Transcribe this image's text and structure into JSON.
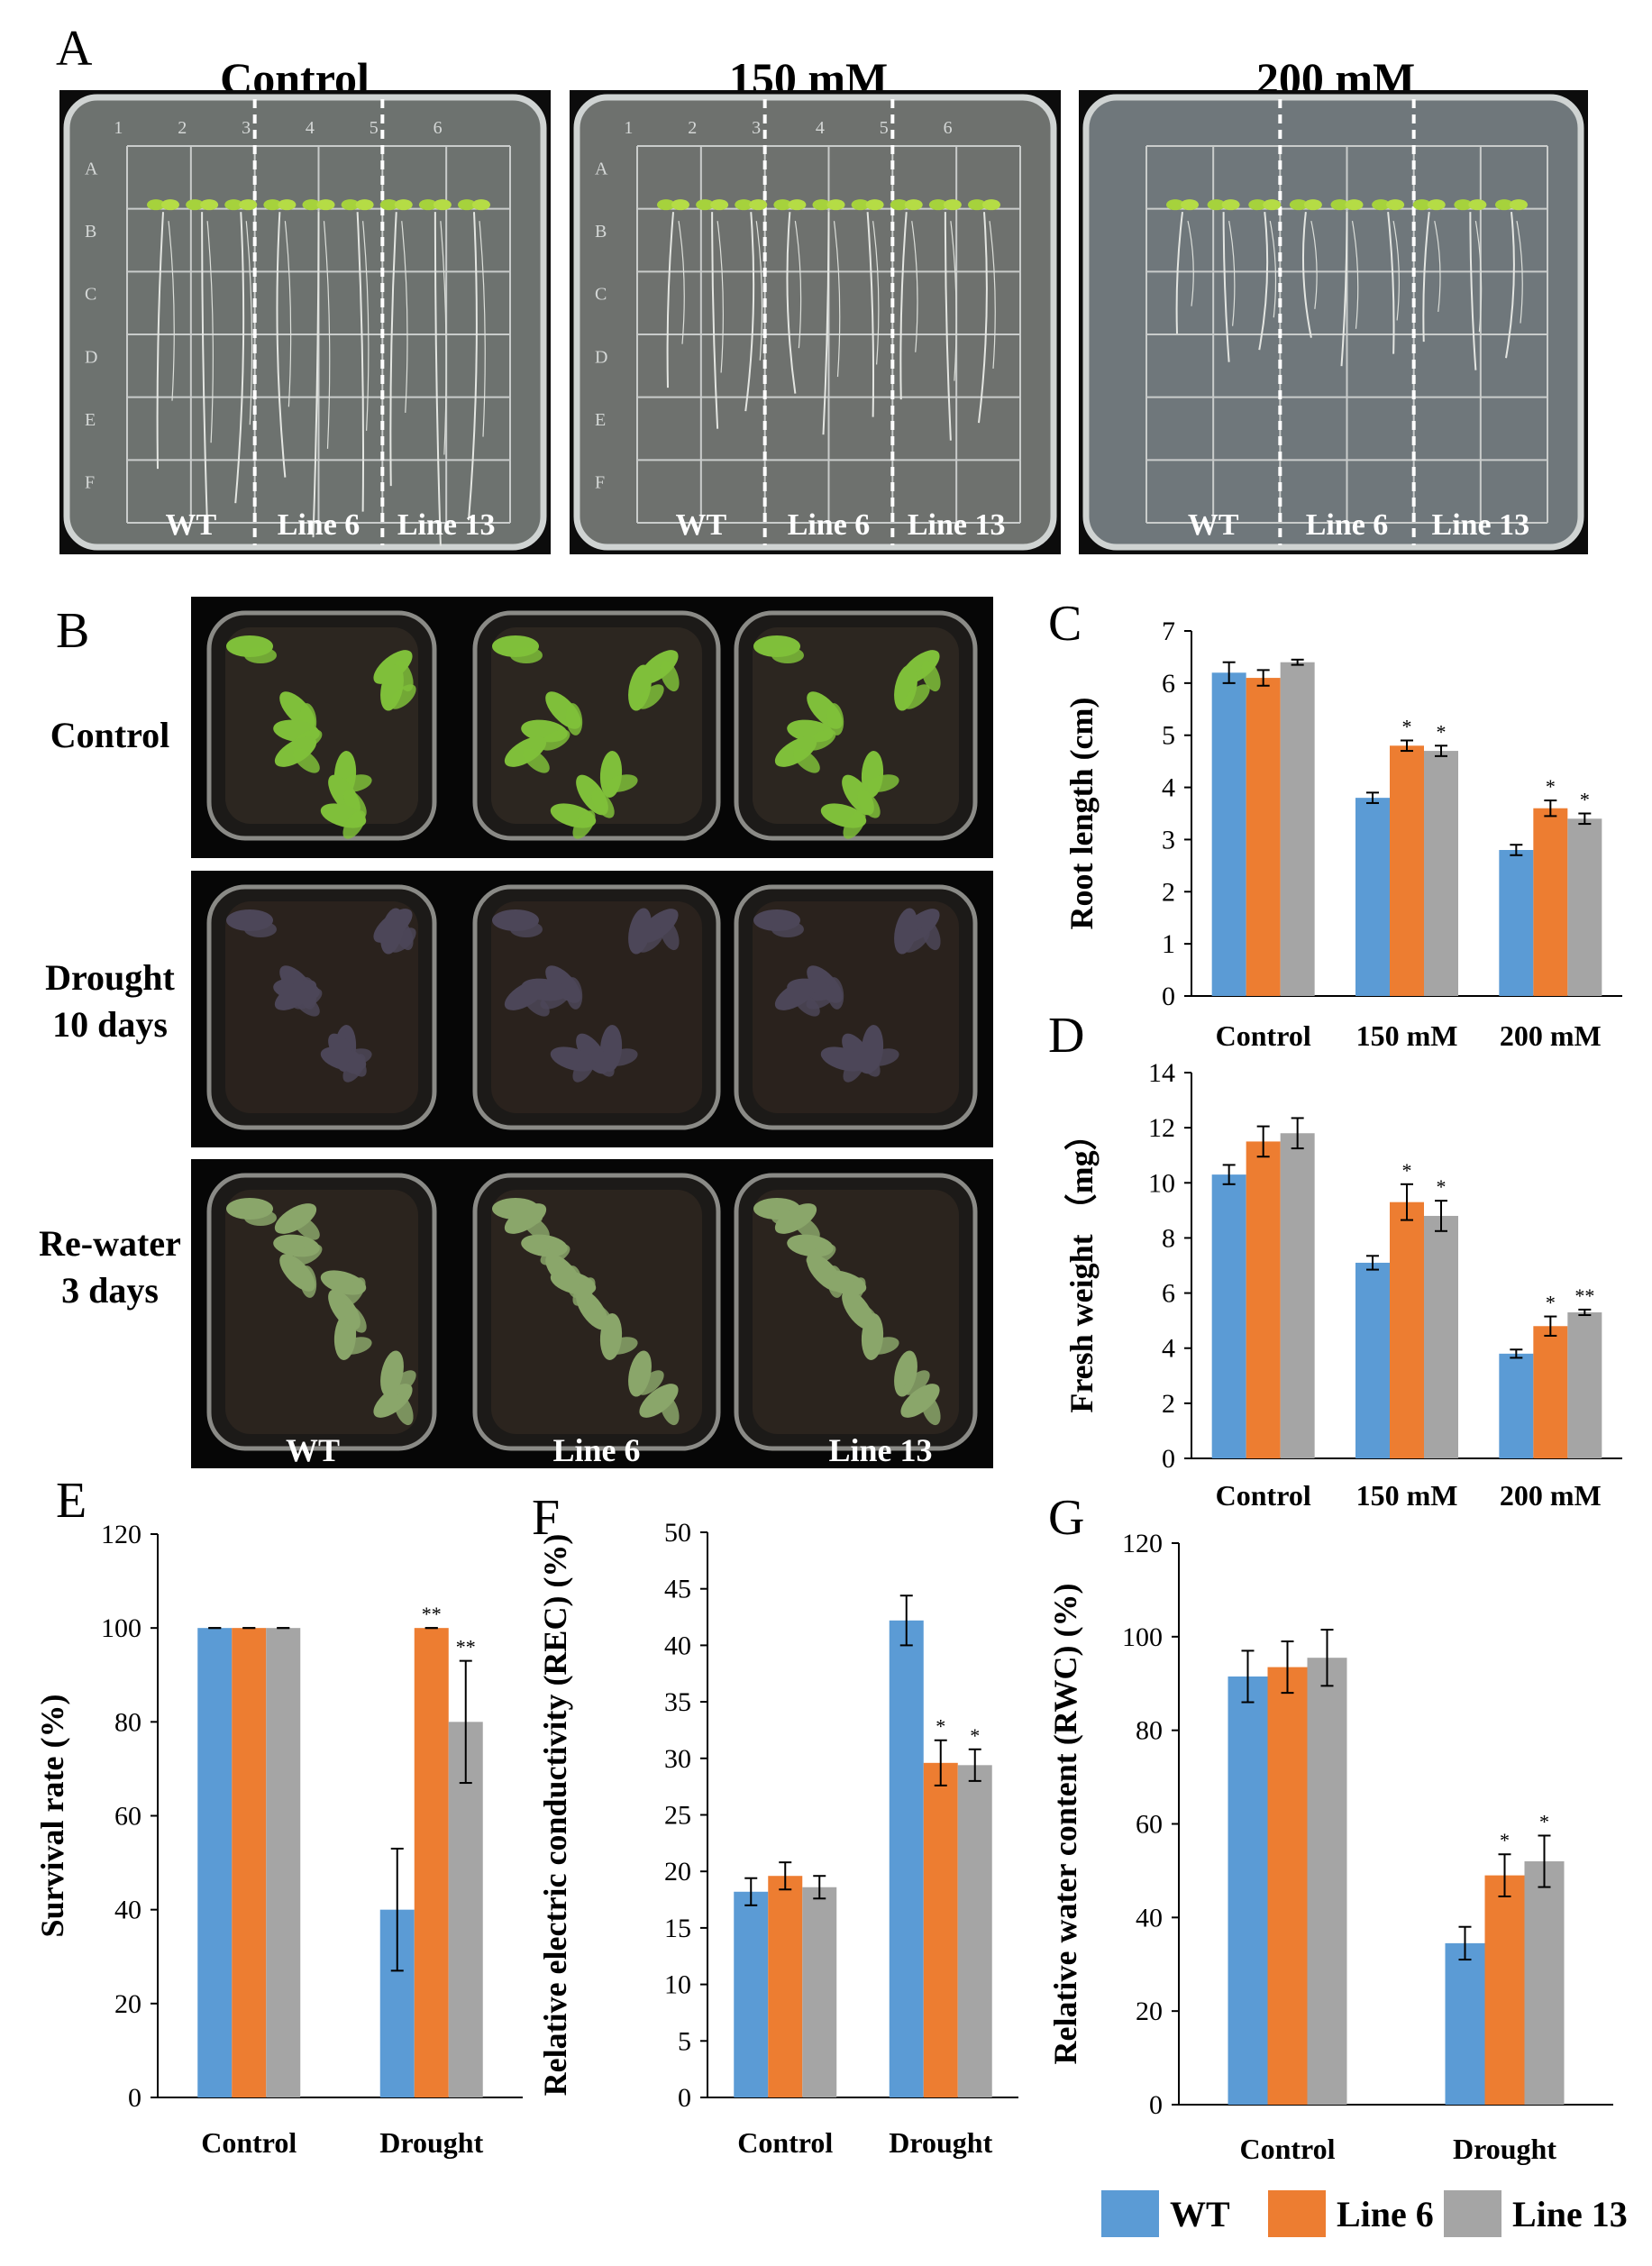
{
  "panel_letters": {
    "a": "A",
    "b": "B",
    "c": "C",
    "d": "D",
    "e": "E",
    "f": "F",
    "g": "G"
  },
  "panel_a": {
    "plates": [
      {
        "title": "Control",
        "bg": "#6d726f",
        "lanes": [
          "WT",
          "Line 6",
          "Line 13"
        ],
        "col_nums": [
          "1",
          "2",
          "3",
          "4",
          "5",
          "6"
        ],
        "row_letters": [
          "A",
          "B",
          "C",
          "D",
          "E",
          "F"
        ]
      },
      {
        "title": "150 mM",
        "bg": "#6e716e",
        "lanes": [
          "WT",
          "Line 6",
          "Line 13"
        ],
        "col_nums": [
          "1",
          "2",
          "3",
          "4",
          "5",
          "6"
        ],
        "row_letters": [
          "A",
          "B",
          "C",
          "D",
          "E",
          "F"
        ]
      },
      {
        "title": "200 mM",
        "bg": "#6f777b",
        "lanes": [
          "WT",
          "Line 6",
          "Line 13"
        ],
        "col_nums": [
          "",
          "",
          "",
          "",
          "",
          ""
        ],
        "row_letters": [
          "",
          "",
          "",
          "",
          "",
          ""
        ]
      }
    ]
  },
  "panel_b": {
    "rows": [
      {
        "label_lines": [
          "Control"
        ],
        "leaf": "#7fbf3a",
        "soil": "#2c2620"
      },
      {
        "label_lines": [
          "Drought",
          "10 days"
        ],
        "leaf": "#4c4658",
        "soil": "#2a221d"
      },
      {
        "label_lines": [
          "Re-water",
          "3 days"
        ],
        "leaf": "#8aa66a",
        "soil": "#2b241e"
      }
    ],
    "bottom_labels": [
      "WT",
      "Line 6",
      "Line 13"
    ]
  },
  "colors": {
    "wt": "#5b9bd5",
    "line6": "#ed7d31",
    "line13": "#a5a5a5"
  },
  "legend": {
    "items": [
      {
        "key": "wt",
        "label": "WT"
      },
      {
        "key": "line6",
        "label": "Line 6"
      },
      {
        "key": "line13",
        "label": "Line 13"
      }
    ]
  },
  "chart_data": [
    {
      "id": "C",
      "type": "bar",
      "ylabel": "Root  length (cm)",
      "xlabel": "",
      "categories": [
        "Control",
        "150 mM",
        "200 mM"
      ],
      "ylim": [
        0,
        7
      ],
      "yticks": [
        0,
        1,
        2,
        3,
        4,
        5,
        6,
        7
      ],
      "series": [
        {
          "name": "WT",
          "color_key": "wt",
          "values": [
            6.2,
            3.8,
            2.8
          ],
          "errors": [
            0.2,
            0.1,
            0.1
          ],
          "stars": [
            "",
            "",
            ""
          ]
        },
        {
          "name": "Line 6",
          "color_key": "line6",
          "values": [
            6.1,
            4.8,
            3.6
          ],
          "errors": [
            0.15,
            0.1,
            0.15
          ],
          "stars": [
            "",
            "*",
            "*"
          ]
        },
        {
          "name": "Line 13",
          "color_key": "line13",
          "values": [
            6.4,
            4.7,
            3.4
          ],
          "errors": [
            0.05,
            0.1,
            0.1
          ],
          "stars": [
            "",
            "*",
            "*"
          ]
        }
      ]
    },
    {
      "id": "D",
      "type": "bar",
      "ylabel": "Fresh  weight （mg）",
      "xlabel": "",
      "categories": [
        "Control",
        "150 mM",
        "200 mM"
      ],
      "ylim": [
        0,
        14
      ],
      "yticks": [
        0,
        2,
        4,
        6,
        8,
        10,
        12,
        14
      ],
      "series": [
        {
          "name": "WT",
          "color_key": "wt",
          "values": [
            10.3,
            7.1,
            3.8
          ],
          "errors": [
            0.35,
            0.25,
            0.15
          ],
          "stars": [
            "",
            "",
            ""
          ]
        },
        {
          "name": "Line 6",
          "color_key": "line6",
          "values": [
            11.5,
            9.3,
            4.8
          ],
          "errors": [
            0.55,
            0.65,
            0.35
          ],
          "stars": [
            "",
            "*",
            "*"
          ]
        },
        {
          "name": "Line 13",
          "color_key": "line13",
          "values": [
            11.8,
            8.8,
            5.3
          ],
          "errors": [
            0.55,
            0.55,
            0.1
          ],
          "stars": [
            "",
            "*",
            "**"
          ]
        }
      ]
    },
    {
      "id": "E",
      "type": "bar",
      "ylabel": "Survival rate (%)",
      "xlabel": "",
      "categories": [
        "Control",
        "Drought"
      ],
      "ylim": [
        0,
        120
      ],
      "yticks": [
        0,
        20,
        40,
        60,
        80,
        100,
        120
      ],
      "series": [
        {
          "name": "WT",
          "color_key": "wt",
          "values": [
            100,
            40
          ],
          "errors": [
            0,
            13
          ],
          "stars": [
            "",
            ""
          ]
        },
        {
          "name": "Line 6",
          "color_key": "line6",
          "values": [
            100,
            100
          ],
          "errors": [
            0,
            0
          ],
          "stars": [
            "",
            "**"
          ]
        },
        {
          "name": "Line 13",
          "color_key": "line13",
          "values": [
            100,
            80
          ],
          "errors": [
            0,
            13
          ],
          "stars": [
            "",
            "**"
          ]
        }
      ]
    },
    {
      "id": "F",
      "type": "bar",
      "ylabel": "Relative electric conductivity (REC) (%)",
      "xlabel": "",
      "categories": [
        "Control",
        "Drought"
      ],
      "ylim": [
        0,
        50
      ],
      "yticks": [
        0,
        5,
        10,
        15,
        20,
        25,
        30,
        35,
        40,
        45,
        50
      ],
      "series": [
        {
          "name": "WT",
          "color_key": "wt",
          "values": [
            18.2,
            42.2
          ],
          "errors": [
            1.2,
            2.2
          ],
          "stars": [
            "",
            ""
          ]
        },
        {
          "name": "Line 6",
          "color_key": "line6",
          "values": [
            19.6,
            29.6
          ],
          "errors": [
            1.2,
            2.0
          ],
          "stars": [
            "",
            "*"
          ]
        },
        {
          "name": "Line 13",
          "color_key": "line13",
          "values": [
            18.6,
            29.4
          ],
          "errors": [
            1.0,
            1.4
          ],
          "stars": [
            "",
            "*"
          ]
        }
      ]
    },
    {
      "id": "G",
      "type": "bar",
      "ylabel": "Relative water content (RWC) (%)",
      "xlabel": "",
      "categories": [
        "Control",
        "Drought"
      ],
      "ylim": [
        0,
        120
      ],
      "yticks": [
        0,
        20,
        40,
        60,
        80,
        100,
        120
      ],
      "series": [
        {
          "name": "WT",
          "color_key": "wt",
          "values": [
            91.5,
            34.5
          ],
          "errors": [
            5.5,
            3.5
          ],
          "stars": [
            "",
            ""
          ]
        },
        {
          "name": "Line 6",
          "color_key": "line6",
          "values": [
            93.5,
            49
          ],
          "errors": [
            5.5,
            4.5
          ],
          "stars": [
            "",
            "*"
          ]
        },
        {
          "name": "Line 13",
          "color_key": "line13",
          "values": [
            95.5,
            52
          ],
          "errors": [
            6,
            5.5
          ],
          "stars": [
            "",
            "*"
          ]
        }
      ]
    }
  ]
}
